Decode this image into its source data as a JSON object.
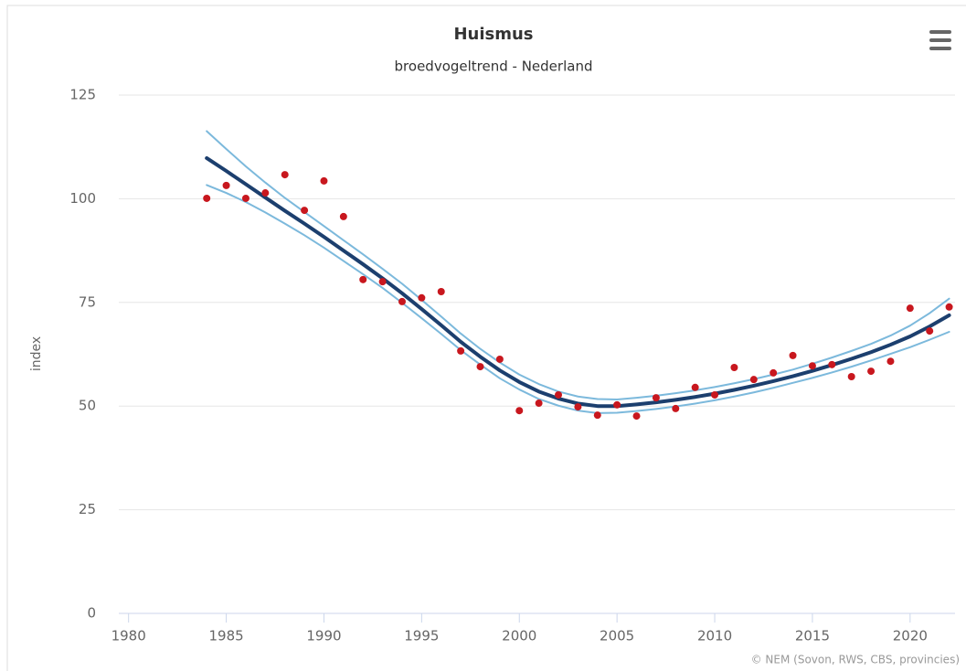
{
  "chart_data": {
    "type": "line",
    "title": "Huismus",
    "subtitle": "broedvogeltrend - Nederland",
    "ylabel": "index",
    "credit": "© NEM (Sovon, RWS, CBS, provincies)",
    "x": [
      1984,
      1985,
      1986,
      1987,
      1988,
      1989,
      1990,
      1991,
      1992,
      1993,
      1994,
      1995,
      1996,
      1997,
      1998,
      1999,
      2000,
      2001,
      2002,
      2003,
      2004,
      2005,
      2006,
      2007,
      2008,
      2009,
      2010,
      2011,
      2012,
      2013,
      2014,
      2015,
      2016,
      2017,
      2018,
      2019,
      2020,
      2021,
      2022
    ],
    "series": [
      {
        "color": "#1c3f6e",
        "style": "line",
        "width": 4,
        "values": [
          109.8,
          106.7,
          103.5,
          100.3,
          97.1,
          94.0,
          90.8,
          87.5,
          84.2,
          80.8,
          77.2,
          73.4,
          69.5,
          65.5,
          61.9,
          58.6,
          55.8,
          53.5,
          51.8,
          50.6,
          50.0,
          50.0,
          50.4,
          50.9,
          51.5,
          52.2,
          53.0,
          53.9,
          54.9,
          56.0,
          57.2,
          58.5,
          59.9,
          61.4,
          63.0,
          64.8,
          66.8,
          69.2,
          71.9
        ]
      },
      {
        "color": "#7cb9dc",
        "style": "line",
        "width": 2,
        "values": [
          116.3,
          112.0,
          107.8,
          103.9,
          100.2,
          96.8,
          93.4,
          90.0,
          86.6,
          83.1,
          79.5,
          75.6,
          71.6,
          67.5,
          63.8,
          60.5,
          57.6,
          55.3,
          53.5,
          52.3,
          51.7,
          51.6,
          52.0,
          52.5,
          53.1,
          53.8,
          54.6,
          55.5,
          56.5,
          57.6,
          58.8,
          60.2,
          61.7,
          63.3,
          65.0,
          67.0,
          69.4,
          72.4,
          75.9
        ]
      },
      {
        "color": "#7cb9dc",
        "style": "line",
        "width": 2,
        "values": [
          103.3,
          101.4,
          99.2,
          96.7,
          94.0,
          91.2,
          88.2,
          85.0,
          81.8,
          78.5,
          74.9,
          71.2,
          67.4,
          63.5,
          60.0,
          56.7,
          54.0,
          51.7,
          50.1,
          48.9,
          48.3,
          48.4,
          48.8,
          49.3,
          49.9,
          50.6,
          51.4,
          52.3,
          53.3,
          54.4,
          55.6,
          56.8,
          58.1,
          59.5,
          61.0,
          62.6,
          64.2,
          66.0,
          67.9
        ]
      },
      {
        "color": "#c8171e",
        "style": "points",
        "values": [
          100.1,
          103.2,
          100.1,
          101.4,
          105.8,
          97.2,
          104.3,
          95.7,
          80.5,
          80.0,
          75.2,
          76.1,
          77.6,
          63.3,
          59.5,
          61.3,
          48.9,
          50.7,
          52.7,
          49.8,
          47.8,
          50.3,
          47.6,
          52.0,
          49.4,
          54.5,
          52.7,
          59.3,
          56.4,
          58.0,
          62.2,
          59.7,
          60.0,
          57.1,
          58.4,
          60.8,
          73.6,
          68.1,
          73.9
        ]
      }
    ],
    "xlim": [
      1979.5,
      2022.3
    ],
    "xticks": [
      1980,
      1985,
      1990,
      1995,
      2000,
      2005,
      2010,
      2015,
      2020
    ],
    "ylim": [
      0,
      125
    ],
    "yticks": [
      0,
      25,
      50,
      75,
      100,
      125
    ],
    "grid": true
  }
}
